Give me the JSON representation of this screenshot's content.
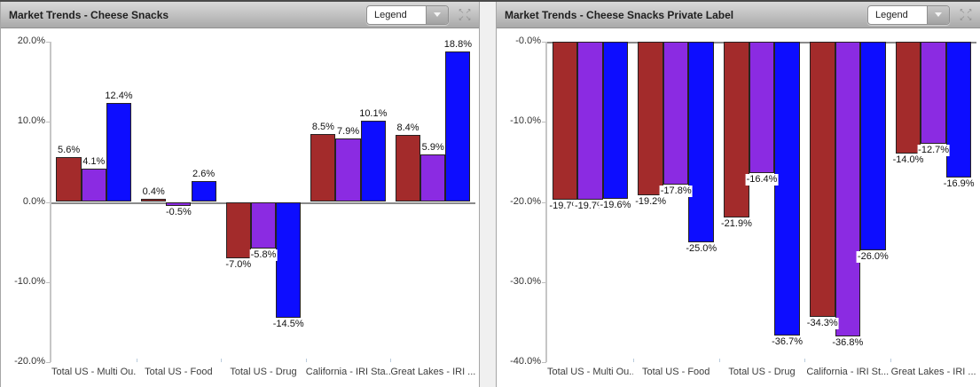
{
  "panels": [
    {
      "title": "Market Trends - Cheese Snacks",
      "legend_label": "Legend",
      "expand_icon": "expand-arrows"
    },
    {
      "title": "Market Trends - Cheese Snacks Private Label",
      "legend_label": "Legend",
      "expand_icon": "expand-arrows"
    }
  ],
  "colors": {
    "series_red": "#A32B2B",
    "series_purple": "#8B2BE2",
    "series_blue": "#0D0DFF",
    "bar_border": "#272222",
    "zero_line": "#8a8a8a",
    "header_title": "#1f1f1f"
  },
  "chart_data": [
    {
      "type": "bar",
      "title": "Market Trends - Cheese Snacks",
      "categories": [
        "Total US - Multi Ou...",
        "Total US - Food",
        "Total US - Drug",
        "California - IRI Sta...",
        "Great Lakes - IRI ..."
      ],
      "series": [
        {
          "color": "#A32B2B",
          "values": [
            5.6,
            0.4,
            -7.0,
            8.5,
            8.4
          ],
          "labels": [
            "5.6%",
            "0.4%",
            "-7.0%",
            "8.5%",
            "8.4%"
          ]
        },
        {
          "color": "#8B2BE2",
          "values": [
            4.1,
            -0.5,
            -5.8,
            7.9,
            5.9
          ],
          "labels": [
            "4.1%",
            "-0.5%",
            "-5.8%",
            "7.9%",
            "5.9%"
          ]
        },
        {
          "color": "#0D0DFF",
          "values": [
            12.4,
            2.6,
            -14.5,
            10.1,
            18.8
          ],
          "labels": [
            "12.4%",
            "2.6%",
            "-14.5%",
            "10.1%",
            "18.8%"
          ]
        }
      ],
      "ylim": [
        -20,
        20
      ],
      "yticks": [
        {
          "value": 20,
          "label": "20.0%"
        },
        {
          "value": 10,
          "label": "10.0%"
        },
        {
          "value": 0,
          "label": "0.0%"
        },
        {
          "value": -10,
          "label": "-10.0%"
        },
        {
          "value": -20,
          "label": "-20.0%"
        }
      ],
      "grid": false,
      "legend": "collapsed dropdown"
    },
    {
      "type": "bar",
      "title": "Market Trends - Cheese Snacks Private Label",
      "categories": [
        "Total US - Multi Ou...",
        "Total US - Food",
        "Total US - Drug",
        "California - IRI St...",
        "Great Lakes - IRI ..."
      ],
      "series": [
        {
          "color": "#A32B2B",
          "values": [
            -19.7,
            -19.2,
            -21.9,
            -34.3,
            -14.0
          ],
          "labels": [
            "-19.7%",
            "-19.2%",
            "-21.9%",
            "-34.3%",
            "-14.0%"
          ]
        },
        {
          "color": "#8B2BE2",
          "values": [
            -19.7,
            -17.8,
            -16.4,
            -36.8,
            -12.7
          ],
          "labels": [
            "-19.7%",
            "-17.8%",
            "-16.4%",
            "-36.8%",
            "-12.7%"
          ]
        },
        {
          "color": "#0D0DFF",
          "values": [
            -19.6,
            -25.0,
            -36.7,
            -26.0,
            -16.9
          ],
          "labels": [
            "-19.6%",
            "-25.0%",
            "-36.7%",
            "-26.0%",
            "-16.9%"
          ]
        }
      ],
      "ylim": [
        -40,
        0
      ],
      "yticks": [
        {
          "value": 0,
          "label": "-0.0%"
        },
        {
          "value": -10,
          "label": "-10.0%"
        },
        {
          "value": -20,
          "label": "-20.0%"
        },
        {
          "value": -30,
          "label": "-30.0%"
        },
        {
          "value": -40,
          "label": "-40.0%"
        }
      ],
      "grid": false,
      "legend": "collapsed dropdown"
    }
  ]
}
